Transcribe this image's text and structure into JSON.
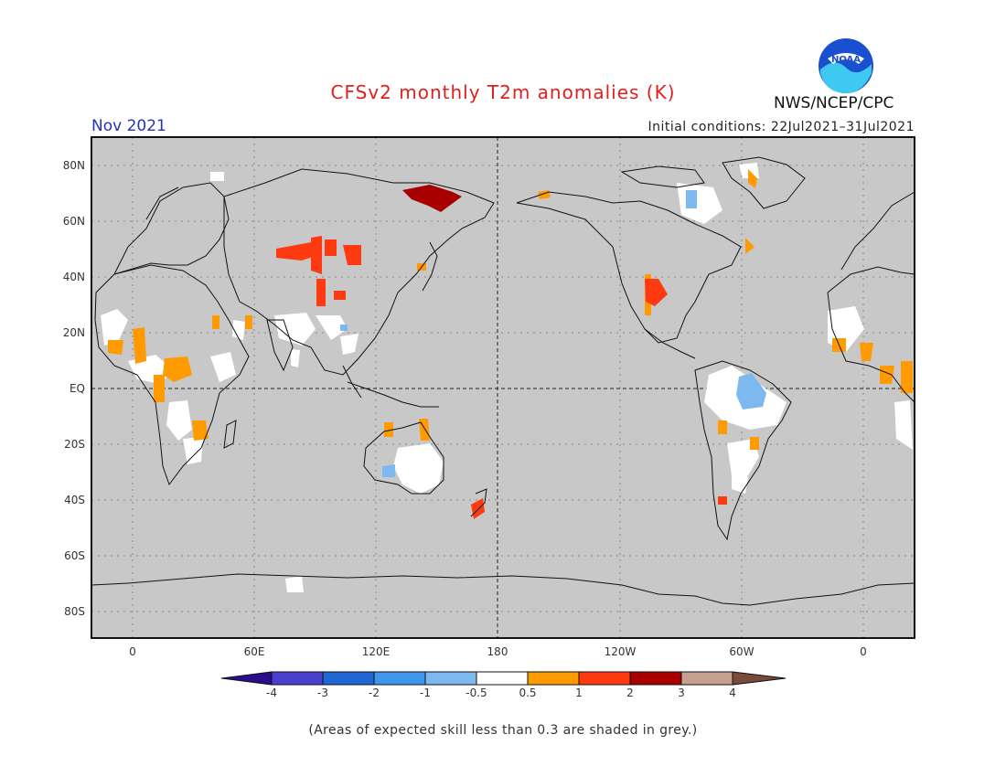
{
  "title": "CFSv2 monthly T2m anomalies (K)",
  "month": "Nov 2021",
  "initial_conditions": "Initial conditions: 22Jul2021–31Jul2021",
  "agency": "NWS/NCEP/CPC",
  "logo_text": "NOAA",
  "footnote": "(Areas of expected skill less than 0.3 are shaded in grey.)",
  "lat_labels": [
    "80N",
    "60N",
    "40N",
    "20N",
    "EQ",
    "20S",
    "40S",
    "60S",
    "80S"
  ],
  "lon_labels": [
    "0",
    "60E",
    "120E",
    "180",
    "120W",
    "60W",
    "0"
  ],
  "colorbar": {
    "labels": [
      "-4",
      "-3",
      "-2",
      "-1",
      "-0.5",
      "0.5",
      "1",
      "2",
      "3",
      "4"
    ],
    "colors": [
      "#2a0d8c",
      "#4a3fcf",
      "#1f68d4",
      "#3f96ef",
      "#7db9ef",
      "#ffffff",
      "#ff9a00",
      "#ff3a10",
      "#a80000",
      "#c8a090",
      "#7a4a3a"
    ]
  },
  "colors": {
    "grey_mask": "#c8c8c8",
    "positive_weak": "#ff9a00",
    "positive_mid": "#ff3a10",
    "positive_strong": "#a80000",
    "negative_weak": "#7db9ef",
    "neutral": "#ffffff"
  }
}
